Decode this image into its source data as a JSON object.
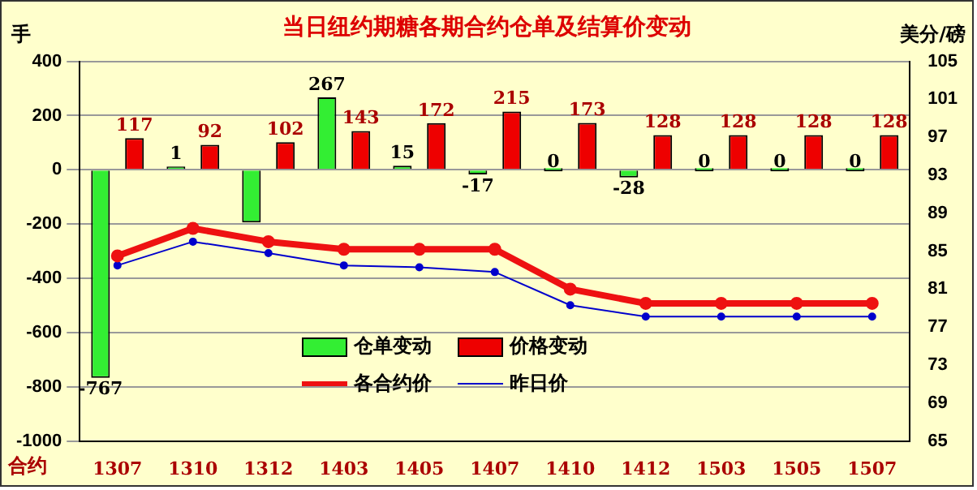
{
  "chart_data": {
    "type": "bar",
    "title": "当日纽约期糖各期合约仓单及结算价变动",
    "ylabel": "手",
    "y2label": "美分/磅",
    "xlabel": "合约",
    "categories": [
      "1307",
      "1310",
      "1312",
      "1403",
      "1405",
      "1407",
      "1410",
      "1412",
      "1503",
      "1505",
      "1507"
    ],
    "series": [
      {
        "name": "仓单变动",
        "color": "#33ee33",
        "values": [
          -767,
          1,
          -194,
          267,
          15,
          -17,
          0,
          -28,
          0,
          0,
          0
        ],
        "value_labels": [
          "-767",
          "1",
          null,
          "267",
          "15",
          "-17",
          "0",
          "-28",
          "0",
          "0",
          "0"
        ]
      },
      {
        "name": "价格变动",
        "color": "#ee0000",
        "values": [
          117,
          92,
          102,
          143,
          172,
          215,
          173,
          128,
          128,
          128,
          128
        ],
        "value_labels": [
          "117",
          "92",
          "102",
          "143",
          "172",
          "215",
          "173",
          "128",
          "128",
          "128",
          "128"
        ]
      },
      {
        "name": "各合约价",
        "type": "line",
        "axis": "y2",
        "color": "#ee1111",
        "values": [
          84.5,
          87.4,
          86.0,
          85.2,
          85.2,
          85.2,
          81.0,
          79.5,
          79.5,
          79.5,
          79.5
        ]
      },
      {
        "name": "昨日价",
        "type": "line",
        "axis": "y2",
        "color": "#0000cc",
        "values": [
          83.5,
          86.0,
          84.8,
          83.5,
          83.3,
          82.8,
          79.3,
          78.1,
          78.1,
          78.1,
          78.1
        ]
      }
    ],
    "ylim": [
      -1000,
      400
    ],
    "yticks": [
      -1000,
      -800,
      -600,
      -400,
      -200,
      0,
      200,
      400
    ],
    "y2lim": [
      65,
      105
    ],
    "y2ticks": [
      65,
      69,
      73,
      77,
      81,
      85,
      89,
      93,
      97,
      101,
      105
    ],
    "grid": "y",
    "legend": "bottom",
    "marker": "circle"
  }
}
